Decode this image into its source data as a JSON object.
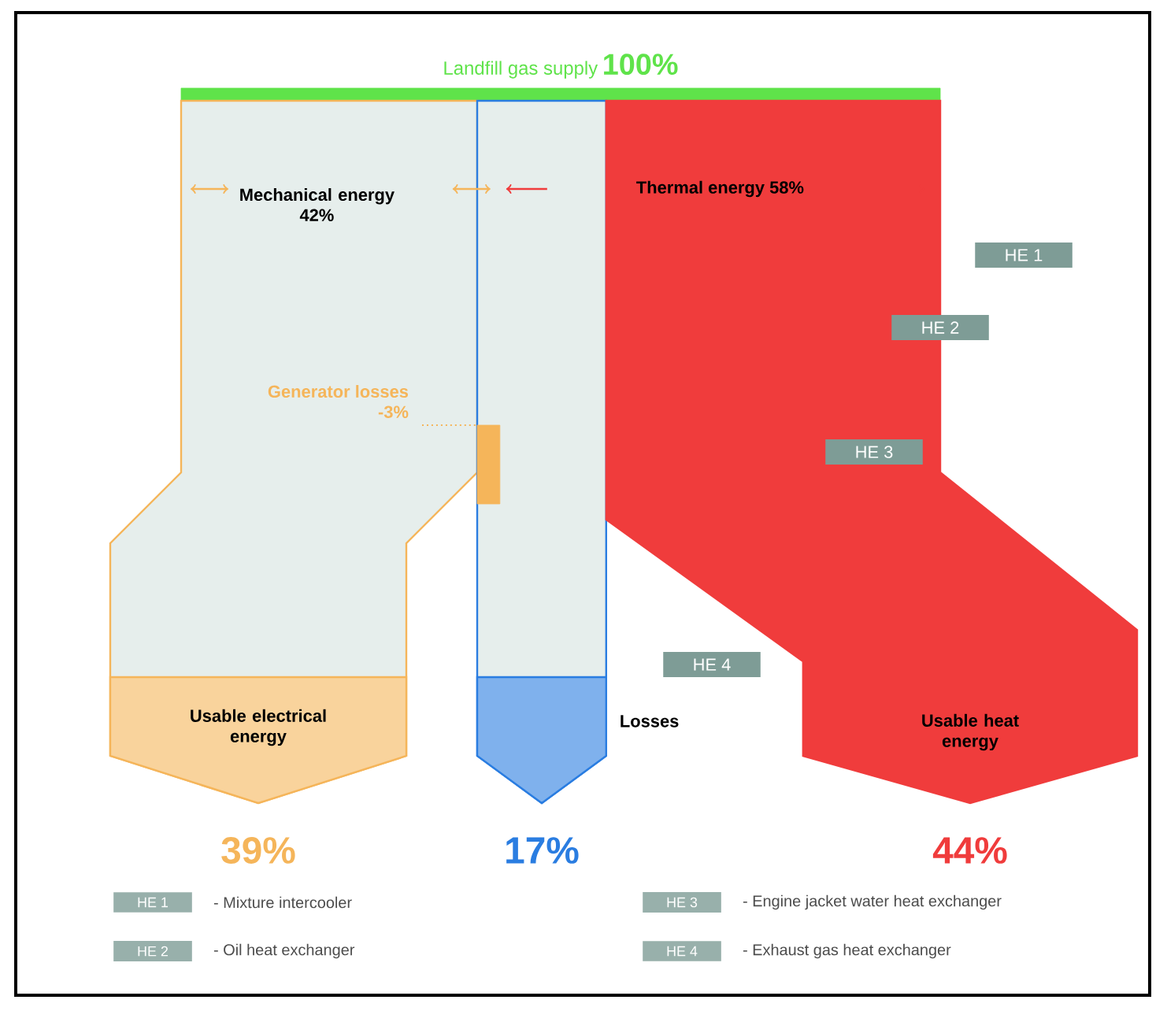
{
  "chart_data": {
    "type": "other",
    "categories": [
      "Landfill gas supply",
      "Mechanical energy",
      "Thermal energy",
      "Generator losses",
      "Usable electrical energy",
      "Losses",
      "Usable heat energy"
    ],
    "values": [
      100,
      42,
      58,
      -3,
      39,
      17,
      44
    ],
    "value_labels": [
      "100%",
      "42%",
      "58%",
      "-3%",
      "39%",
      "17%",
      "44%"
    ],
    "colors": [
      "#5fe34a",
      "#f5b55a",
      "#f03c3c",
      "#f5b55a",
      "#f5b55a",
      "#2a7de1",
      "#f03c3c"
    ],
    "annotations": [
      "HE 1",
      "HE 2",
      "HE 3",
      "HE 4",
      "- Mixture intercooler",
      "- Oil heat exchanger",
      "- Engine jacket water heat exchanger",
      "- Exhaust gas heat exchanger"
    ]
  }
}
